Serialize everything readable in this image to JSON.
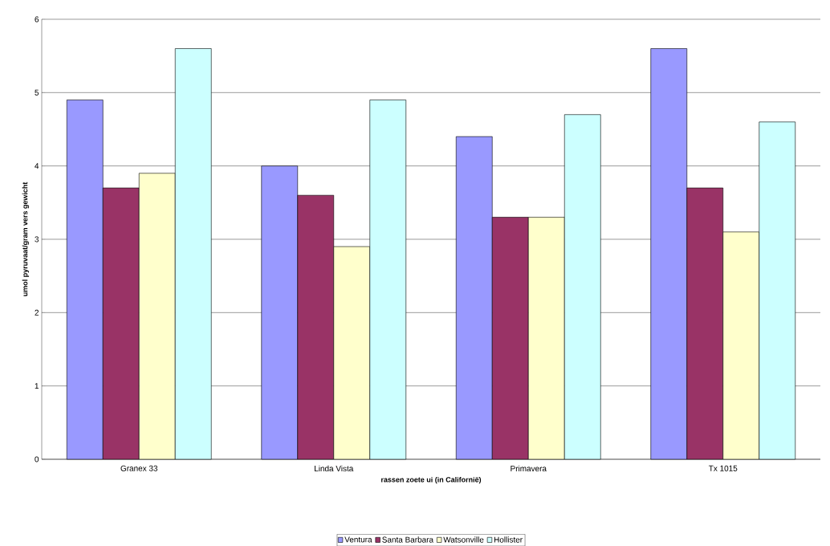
{
  "chart_data": {
    "type": "bar",
    "xlabel": "rassen zoete ui (in Californië)",
    "ylabel": "umol pyruvaat/gram vers gewicht",
    "categories": [
      "Granex 33",
      "Linda Vista",
      "Primavera",
      "Tx 1015"
    ],
    "series": [
      {
        "name": "Ventura",
        "color": "#9999ff",
        "values": [
          4.9,
          4.0,
          4.4,
          5.6
        ]
      },
      {
        "name": "Santa Barbara",
        "color": "#993366",
        "values": [
          3.7,
          3.6,
          3.3,
          3.7
        ]
      },
      {
        "name": "Watsonville",
        "color": "#ffffcc",
        "values": [
          3.9,
          2.9,
          3.3,
          3.1
        ]
      },
      {
        "name": "Hollister",
        "color": "#ccffff",
        "values": [
          5.6,
          4.9,
          4.7,
          4.6
        ]
      }
    ],
    "ylim": [
      0,
      6
    ],
    "yticks": [
      0,
      1,
      2,
      3,
      4,
      5,
      6
    ],
    "grid": "y",
    "legend": "bottom"
  }
}
